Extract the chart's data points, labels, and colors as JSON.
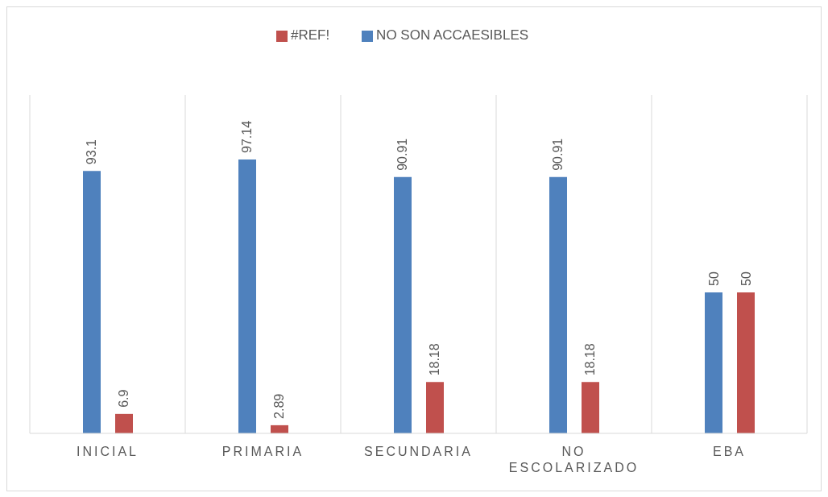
{
  "chart_data": {
    "type": "bar",
    "categories": [
      "INICIAL",
      "PRIMARIA",
      "SECUNDARIA",
      "NO ESCOLARIZADO",
      "EBA"
    ],
    "series": [
      {
        "name": "NO SON ACCAESIBLES",
        "color": "#4f81bd",
        "values": [
          93.1,
          97.14,
          90.91,
          90.91,
          50
        ]
      },
      {
        "name": "#REF!",
        "color": "#c0504d",
        "values": [
          6.9,
          2.89,
          18.18,
          18.18,
          50
        ]
      }
    ],
    "ylim": [
      0,
      120
    ],
    "data_labels": true,
    "grid": "x",
    "legend": "top"
  }
}
